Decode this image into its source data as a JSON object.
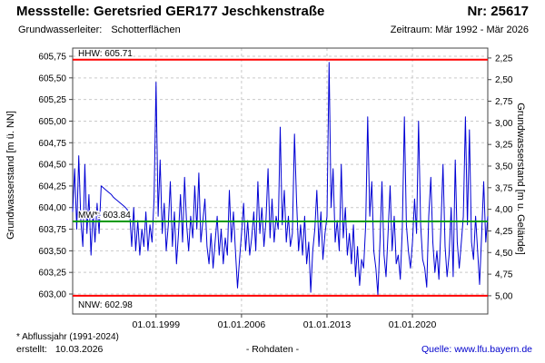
{
  "header": {
    "title": "Messstelle: Geretsried GER177 Jeschkenstraße",
    "number": "Nr: 25617",
    "aquifer_label": "Grundwasserleiter:",
    "aquifer_value": "Schotterflächen",
    "period": "Zeitraum: Mär 1992 - Mär 2026"
  },
  "footer": {
    "footnote": "* Abflussjahr (1991-2024)",
    "created_label": "erstellt:",
    "created_date": "10.03.2026",
    "data_type": "- Rohdaten -",
    "source_text": "Quelle: www.lfu.bayern.de"
  },
  "chart_data": {
    "type": "line",
    "title": "",
    "x_range": [
      1992.17,
      2026.17
    ],
    "grid_color": "#c9c9c9",
    "border_color": "#444444",
    "y_left": {
      "label": "Grundwasserstand [m ü. NN]",
      "min": 603.0,
      "max": 605.75,
      "step": 0.25,
      "tick_labels": [
        "605,75",
        "605,50",
        "605,25",
        "605,00",
        "604,75",
        "604,50",
        "604,25",
        "604,00",
        "603,75",
        "603,50",
        "603,25",
        "603,00"
      ]
    },
    "y_right": {
      "label": "Grundwasserstand [m u. Gelände]",
      "min": 2.25,
      "max": 5.0,
      "step": 0.25,
      "ground_elevation": 607.98,
      "tick_labels": [
        "2,25",
        "2,50",
        "2,75",
        "3,00",
        "3,25",
        "3,50",
        "3,75",
        "4,00",
        "4,25",
        "4,50",
        "4,75",
        "5,00"
      ]
    },
    "x_ticks": [
      {
        "t": 1999.0,
        "label": "01.01.1999"
      },
      {
        "t": 2006.0,
        "label": "01.01.2006"
      },
      {
        "t": 2013.0,
        "label": "01.01.2013"
      },
      {
        "t": 2020.0,
        "label": "01.01.2020"
      }
    ],
    "ref_lines": [
      {
        "id": "hhw",
        "label": "HHW: 605.71",
        "value": 605.71,
        "color": "#ff0000",
        "label_pos": "above"
      },
      {
        "id": "mw",
        "label": "MW*: 603.84",
        "value": 603.84,
        "color": "#009a00",
        "label_pos": "above"
      },
      {
        "id": "nnw",
        "label": "NNW: 602.98",
        "value": 602.98,
        "color": "#ff0000",
        "label_pos": "below"
      }
    ],
    "series": [
      {
        "name": "Grundwasserstand Rohdaten",
        "color": "#0000d4",
        "x_start": 1992.17,
        "x_step": 0.1666667,
        "values": [
          603.95,
          604.45,
          603.75,
          604.6,
          603.85,
          603.55,
          604.5,
          603.7,
          604.15,
          603.45,
          603.95,
          603.6,
          604.05,
          603.7,
          604.25,
          604.23,
          604.21,
          604.19,
          604.17,
          604.15,
          604.12,
          604.1,
          604.08,
          604.06,
          604.04,
          604.02,
          604.0,
          603.97,
          603.95,
          603.55,
          604.0,
          603.5,
          603.85,
          603.45,
          603.75,
          603.55,
          603.95,
          603.5,
          603.8,
          603.6,
          604.1,
          605.45,
          603.9,
          604.55,
          603.7,
          604.05,
          603.5,
          603.8,
          604.3,
          603.55,
          603.95,
          603.35,
          603.7,
          604.15,
          603.6,
          604.35,
          603.8,
          603.5,
          603.9,
          603.65,
          604.25,
          603.75,
          604.4,
          603.6,
          603.85,
          604.1,
          603.55,
          603.35,
          603.7,
          603.3,
          603.6,
          603.9,
          603.45,
          603.75,
          603.35,
          603.65,
          603.45,
          604.2,
          603.6,
          603.95,
          603.5,
          603.07,
          603.4,
          603.7,
          604.05,
          603.5,
          603.85,
          603.45,
          603.65,
          603.95,
          603.5,
          604.3,
          603.7,
          604.0,
          603.55,
          603.85,
          604.45,
          603.65,
          604.1,
          603.6,
          603.9,
          603.75,
          604.93,
          603.8,
          604.2,
          603.6,
          603.9,
          603.55,
          603.7,
          604.85,
          604.1,
          603.5,
          603.8,
          603.45,
          603.9,
          603.35,
          603.6,
          603.02,
          603.5,
          603.75,
          604.2,
          603.55,
          603.95,
          603.4,
          603.7,
          603.9,
          605.68,
          604.0,
          604.45,
          603.6,
          603.85,
          603.5,
          604.5,
          603.65,
          604.0,
          603.45,
          603.7,
          603.35,
          603.8,
          603.2,
          603.55,
          603.1,
          603.4,
          603.3,
          603.8,
          605.05,
          603.9,
          604.3,
          603.5,
          603.3,
          602.99,
          603.6,
          604.3,
          603.45,
          603.2,
          603.7,
          604.25,
          603.5,
          603.9,
          603.35,
          603.45,
          603.17,
          603.75,
          605.05,
          603.8,
          603.5,
          603.3,
          603.6,
          604.1,
          603.7,
          605.0,
          603.8,
          603.4,
          603.3,
          603.08,
          603.9,
          604.35,
          603.6,
          603.25,
          603.5,
          603.17,
          603.8,
          604.5,
          603.55,
          603.2,
          603.45,
          604.0,
          603.2,
          604.55,
          603.6,
          603.3,
          603.6,
          603.9,
          605.05,
          603.8,
          604.9,
          603.6,
          603.4,
          603.9,
          603.5,
          603.11,
          603.7,
          604.3,
          603.6,
          603.9
        ]
      }
    ]
  }
}
